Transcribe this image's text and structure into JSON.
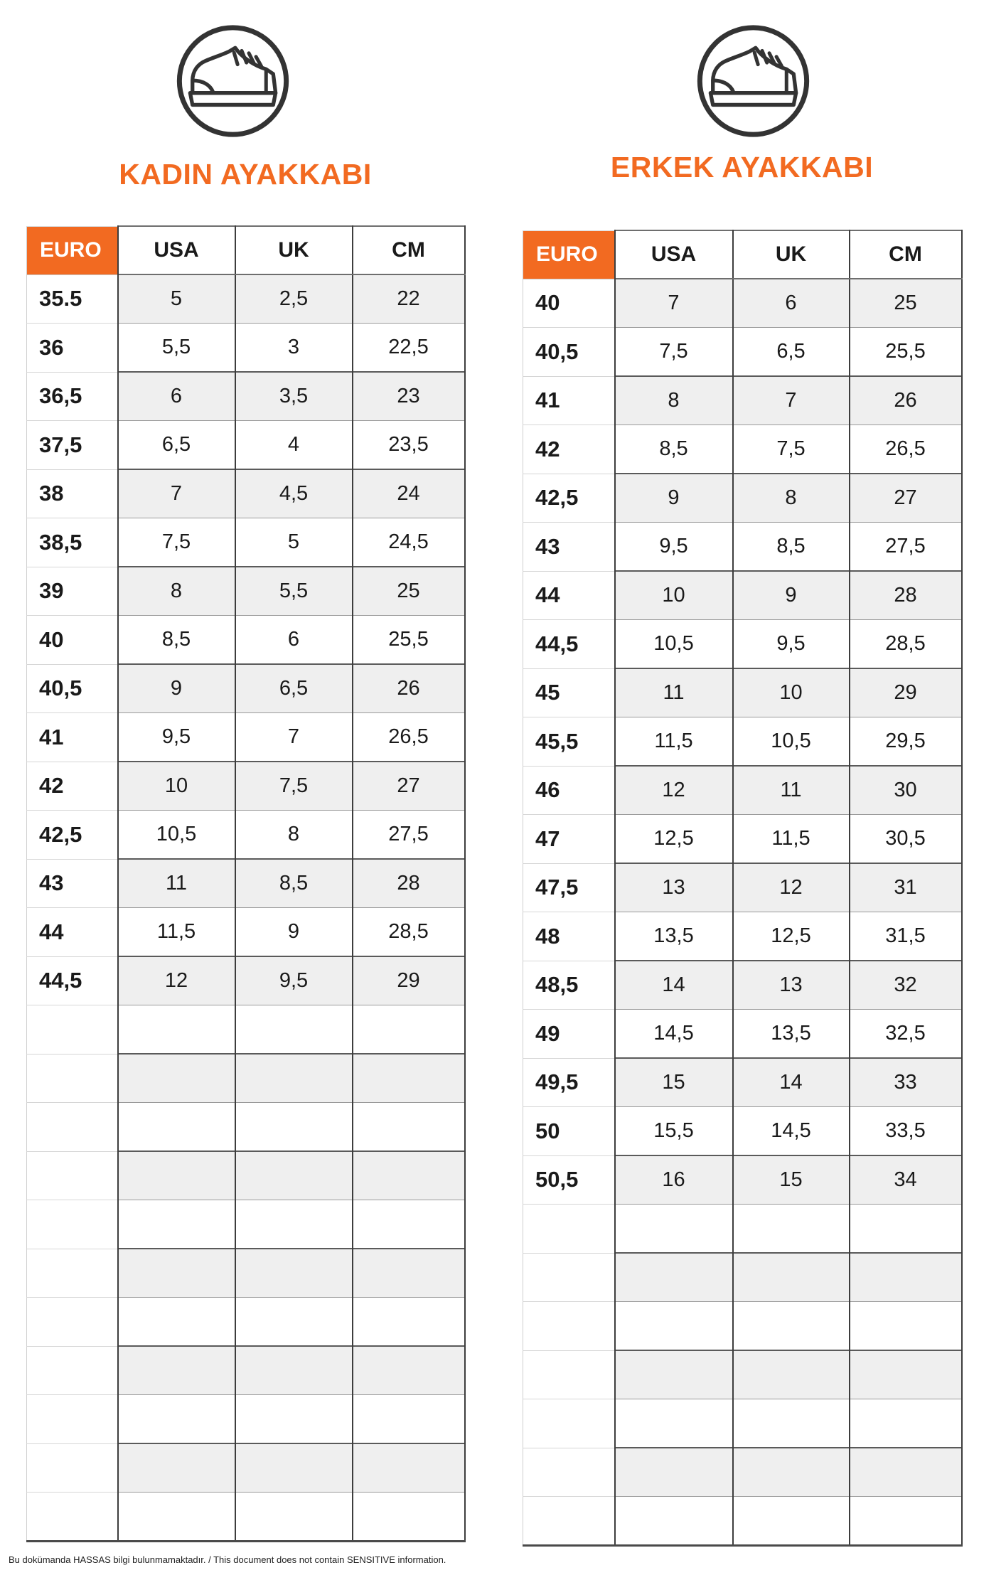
{
  "page": {
    "footer": "Bu dokümanda HASSAS bilgi bulunmamaktadır. / This document does not contain SENSITIVE information."
  },
  "colors": {
    "accent_orange": "#F26A21",
    "row_alt_gray": "#EFEFEF",
    "grid_dark": "#3D3D3D",
    "icon_stroke": "#333333"
  },
  "icons": [
    "shoe-icon",
    "shoe-icon"
  ],
  "tables": [
    {
      "id": "women",
      "title": "KADIN AYAKKABI",
      "headers": [
        "EURO",
        "USA",
        "UK",
        "CM"
      ],
      "rows": [
        [
          "35.5",
          "5",
          "2,5",
          "22"
        ],
        [
          "36",
          "5,5",
          "3",
          "22,5"
        ],
        [
          "36,5",
          "6",
          "3,5",
          "23"
        ],
        [
          "37,5",
          "6,5",
          "4",
          "23,5"
        ],
        [
          "38",
          "7",
          "4,5",
          "24"
        ],
        [
          "38,5",
          "7,5",
          "5",
          "24,5"
        ],
        [
          "39",
          "8",
          "5,5",
          "25"
        ],
        [
          "40",
          "8,5",
          "6",
          "25,5"
        ],
        [
          "40,5",
          "9",
          "6,5",
          "26"
        ],
        [
          "41",
          "9,5",
          "7",
          "26,5"
        ],
        [
          "42",
          "10",
          "7,5",
          "27"
        ],
        [
          "42,5",
          "10,5",
          "8",
          "27,5"
        ],
        [
          "43",
          "11",
          "8,5",
          "28"
        ],
        [
          "44",
          "11,5",
          "9",
          "28,5"
        ],
        [
          "44,5",
          "12",
          "9,5",
          "29"
        ]
      ],
      "empty_rows": 11
    },
    {
      "id": "men",
      "title": "ERKEK AYAKKABI",
      "headers": [
        "EURO",
        "USA",
        "UK",
        "CM"
      ],
      "rows": [
        [
          "40",
          "7",
          "6",
          "25"
        ],
        [
          "40,5",
          "7,5",
          "6,5",
          "25,5"
        ],
        [
          "41",
          "8",
          "7",
          "26"
        ],
        [
          "42",
          "8,5",
          "7,5",
          "26,5"
        ],
        [
          "42,5",
          "9",
          "8",
          "27"
        ],
        [
          "43",
          "9,5",
          "8,5",
          "27,5"
        ],
        [
          "44",
          "10",
          "9",
          "28"
        ],
        [
          "44,5",
          "10,5",
          "9,5",
          "28,5"
        ],
        [
          "45",
          "11",
          "10",
          "29"
        ],
        [
          "45,5",
          "11,5",
          "10,5",
          "29,5"
        ],
        [
          "46",
          "12",
          "11",
          "30"
        ],
        [
          "47",
          "12,5",
          "11,5",
          "30,5"
        ],
        [
          "47,5",
          "13",
          "12",
          "31"
        ],
        [
          "48",
          "13,5",
          "12,5",
          "31,5"
        ],
        [
          "48,5",
          "14",
          "13",
          "32"
        ],
        [
          "49",
          "14,5",
          "13,5",
          "32,5"
        ],
        [
          "49,5",
          "15",
          "14",
          "33"
        ],
        [
          "50",
          "15,5",
          "14,5",
          "33,5"
        ],
        [
          "50,5",
          "16",
          "15",
          "34"
        ]
      ],
      "empty_rows": 7
    }
  ]
}
